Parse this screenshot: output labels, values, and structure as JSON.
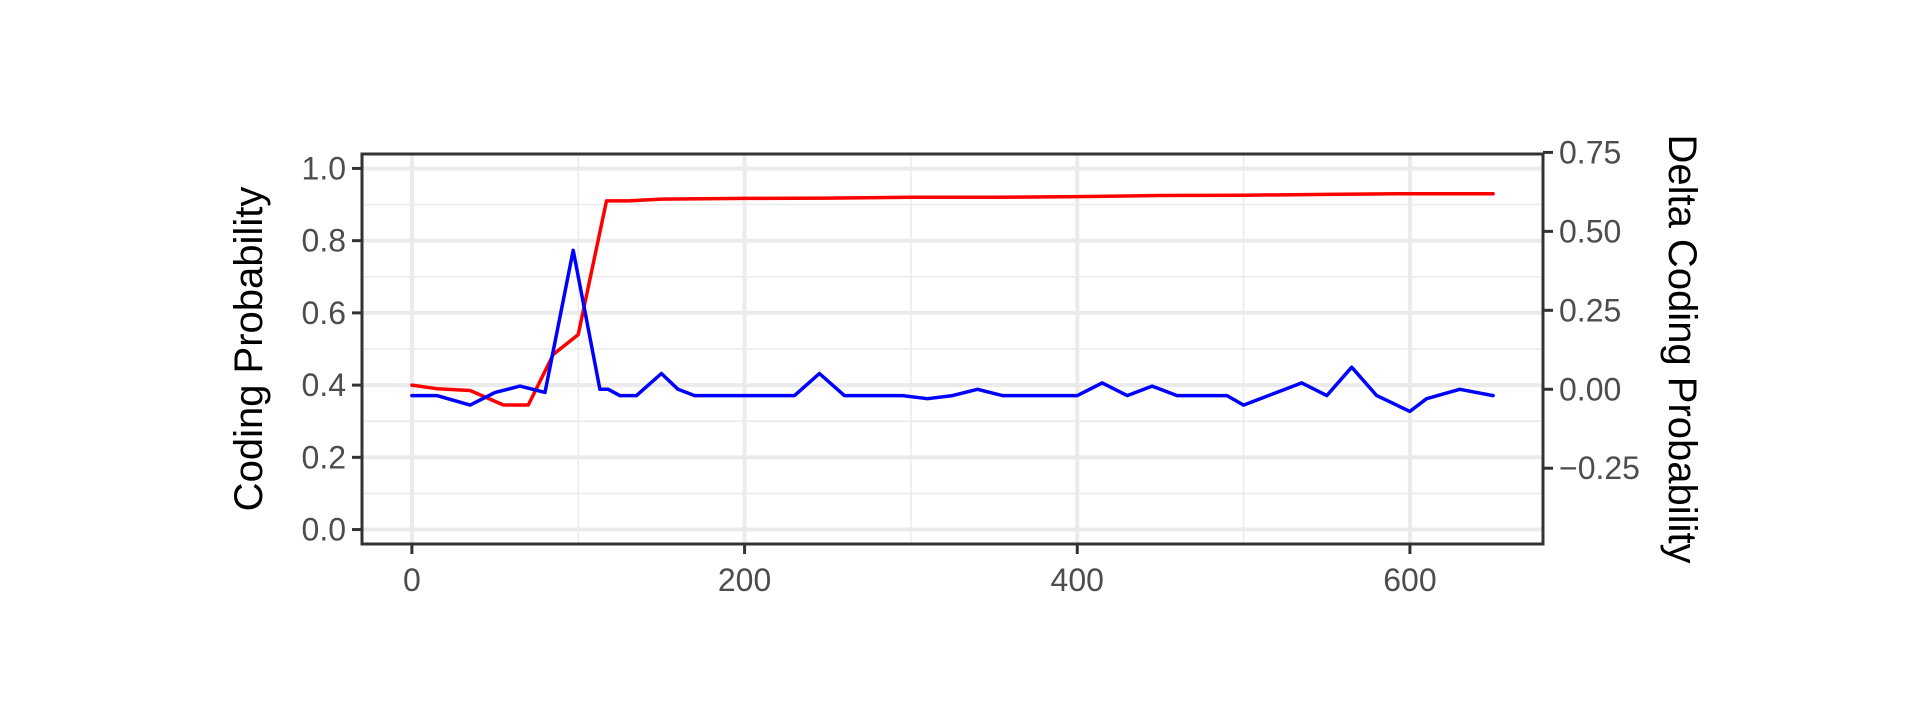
{
  "chart_data": {
    "type": "line",
    "title": "",
    "xlabel": "",
    "ylabel": "Coding Probability",
    "ylabel_right": "Delta Coding Probability",
    "xlim": [
      -30,
      680
    ],
    "ylim": [
      -0.04,
      1.04
    ],
    "ylim_right": [
      -0.49,
      0.745
    ],
    "x_ticks": [
      0,
      200,
      400,
      600
    ],
    "x_tick_labels": [
      "0",
      "200",
      "400",
      "600"
    ],
    "y_ticks": [
      0.0,
      0.2,
      0.4,
      0.6,
      0.8,
      1.0
    ],
    "y_tick_labels": [
      "0.0",
      "0.2",
      "0.4",
      "0.6",
      "0.8",
      "1.0"
    ],
    "y_right_ticks": [
      -0.25,
      0.0,
      0.25,
      0.5,
      0.75
    ],
    "y_right_tick_labels": [
      "−0.25",
      "0.00",
      "0.25",
      "0.50",
      "0.75"
    ],
    "grid": true,
    "legend": "none",
    "series": [
      {
        "axis": "left",
        "color": "#ff0000",
        "x": [
          0,
          15,
          35,
          55,
          70,
          85,
          100,
          117,
          130,
          150,
          200,
          250,
          300,
          350,
          400,
          450,
          500,
          550,
          600,
          650
        ],
        "y": [
          0.4,
          0.39,
          0.385,
          0.345,
          0.345,
          0.485,
          0.54,
          0.91,
          0.91,
          0.915,
          0.917,
          0.918,
          0.92,
          0.92,
          0.922,
          0.925,
          0.926,
          0.928,
          0.93,
          0.93
        ]
      },
      {
        "axis": "right",
        "color": "#0000ff",
        "x": [
          0,
          15,
          35,
          50,
          65,
          80,
          97,
          113,
          118,
          125,
          135,
          150,
          160,
          170,
          180,
          195,
          210,
          230,
          245,
          260,
          280,
          295,
          310,
          325,
          340,
          355,
          370,
          385,
          400,
          415,
          430,
          445,
          460,
          475,
          490,
          500,
          520,
          535,
          550,
          565,
          580,
          600,
          610,
          630,
          650
        ],
        "y": [
          -0.02,
          -0.02,
          -0.05,
          -0.01,
          0.01,
          -0.01,
          0.44,
          0.0,
          0.0,
          -0.02,
          -0.02,
          0.05,
          0.0,
          -0.02,
          -0.02,
          -0.02,
          -0.02,
          -0.02,
          0.05,
          -0.02,
          -0.02,
          -0.02,
          -0.03,
          -0.02,
          0.0,
          -0.02,
          -0.02,
          -0.02,
          -0.02,
          0.02,
          -0.02,
          0.01,
          -0.02,
          -0.02,
          -0.02,
          -0.05,
          -0.01,
          0.02,
          -0.02,
          0.07,
          -0.02,
          -0.07,
          -0.03,
          0.0,
          -0.02
        ]
      }
    ]
  }
}
